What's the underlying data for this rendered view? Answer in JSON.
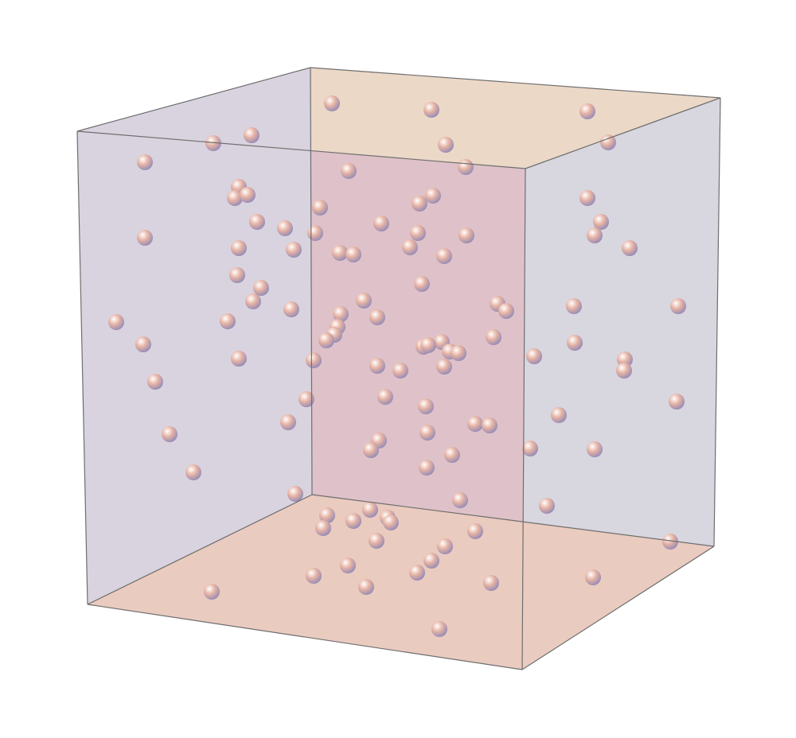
{
  "figure": {
    "kind": "3d-scatter-box",
    "box_faces": {
      "back": "#dfc2c9",
      "left": "#d9d3df",
      "right": "#d8d6df",
      "top": "#ecd9c7",
      "top_right": "#eccfbe",
      "bottom": "#eacbbf",
      "bottom_right": "#e4dfd8"
    },
    "sphere_colors": {
      "highlight": "#ffffff",
      "base": "#e6b3a4",
      "shadow": "#8d87b8"
    },
    "edge_color": "#6e6e6e"
  }
}
